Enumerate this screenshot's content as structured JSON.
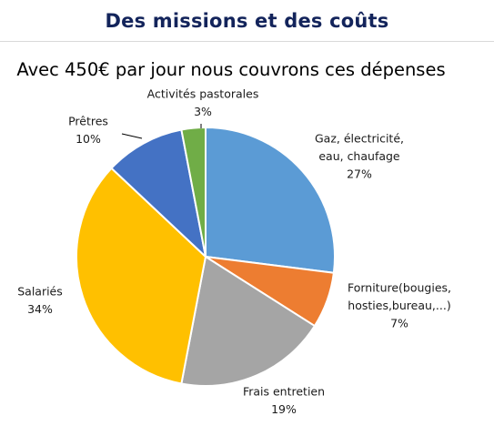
{
  "header": {
    "title": "Des missions et des coûts"
  },
  "chart_data": {
    "type": "pie",
    "title": "Avec 450€ par jour nous couvrons ces dépenses",
    "slices": [
      {
        "label": [
          "Gaz, électricité,",
          "eau, chaufage"
        ],
        "pct_label": "27%",
        "value": 27,
        "color": "#5b9bd5"
      },
      {
        "label": [
          "Forniture(bougies,",
          "hosties,bureau,...)"
        ],
        "pct_label": "7%",
        "value": 7,
        "color": "#ed7d31"
      },
      {
        "label": [
          "Frais entretien"
        ],
        "pct_label": "19%",
        "value": 19,
        "color": "#a5a5a5"
      },
      {
        "label": [
          "Salariés"
        ],
        "pct_label": "34%",
        "value": 34,
        "color": "#ffc000"
      },
      {
        "label": [
          "Prêtres"
        ],
        "pct_label": "10%",
        "value": 10,
        "color": "#4472c4"
      },
      {
        "label": [
          "Activités pastorales"
        ],
        "pct_label": "3%",
        "value": 3,
        "color": "#70ad47"
      }
    ]
  }
}
